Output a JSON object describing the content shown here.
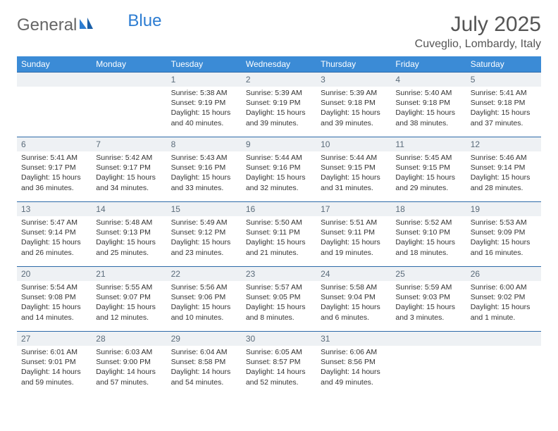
{
  "logo": {
    "text1": "General",
    "text2": "Blue"
  },
  "title": "July 2025",
  "location": "Cuveglio, Lombardy, Italy",
  "colors": {
    "header_bg": "#3b8bd6",
    "row_divider": "#2d6aa8",
    "daynum_bg": "#eef1f4",
    "text": "#333333",
    "logo_grey": "#666666",
    "logo_blue": "#2d7dd2"
  },
  "dow": [
    "Sunday",
    "Monday",
    "Tuesday",
    "Wednesday",
    "Thursday",
    "Friday",
    "Saturday"
  ],
  "weeks": [
    [
      null,
      null,
      {
        "n": "1",
        "sr": "Sunrise: 5:38 AM",
        "ss": "Sunset: 9:19 PM",
        "dl": "Daylight: 15 hours and 40 minutes."
      },
      {
        "n": "2",
        "sr": "Sunrise: 5:39 AM",
        "ss": "Sunset: 9:19 PM",
        "dl": "Daylight: 15 hours and 39 minutes."
      },
      {
        "n": "3",
        "sr": "Sunrise: 5:39 AM",
        "ss": "Sunset: 9:18 PM",
        "dl": "Daylight: 15 hours and 39 minutes."
      },
      {
        "n": "4",
        "sr": "Sunrise: 5:40 AM",
        "ss": "Sunset: 9:18 PM",
        "dl": "Daylight: 15 hours and 38 minutes."
      },
      {
        "n": "5",
        "sr": "Sunrise: 5:41 AM",
        "ss": "Sunset: 9:18 PM",
        "dl": "Daylight: 15 hours and 37 minutes."
      }
    ],
    [
      {
        "n": "6",
        "sr": "Sunrise: 5:41 AM",
        "ss": "Sunset: 9:17 PM",
        "dl": "Daylight: 15 hours and 36 minutes."
      },
      {
        "n": "7",
        "sr": "Sunrise: 5:42 AM",
        "ss": "Sunset: 9:17 PM",
        "dl": "Daylight: 15 hours and 34 minutes."
      },
      {
        "n": "8",
        "sr": "Sunrise: 5:43 AM",
        "ss": "Sunset: 9:16 PM",
        "dl": "Daylight: 15 hours and 33 minutes."
      },
      {
        "n": "9",
        "sr": "Sunrise: 5:44 AM",
        "ss": "Sunset: 9:16 PM",
        "dl": "Daylight: 15 hours and 32 minutes."
      },
      {
        "n": "10",
        "sr": "Sunrise: 5:44 AM",
        "ss": "Sunset: 9:15 PM",
        "dl": "Daylight: 15 hours and 31 minutes."
      },
      {
        "n": "11",
        "sr": "Sunrise: 5:45 AM",
        "ss": "Sunset: 9:15 PM",
        "dl": "Daylight: 15 hours and 29 minutes."
      },
      {
        "n": "12",
        "sr": "Sunrise: 5:46 AM",
        "ss": "Sunset: 9:14 PM",
        "dl": "Daylight: 15 hours and 28 minutes."
      }
    ],
    [
      {
        "n": "13",
        "sr": "Sunrise: 5:47 AM",
        "ss": "Sunset: 9:14 PM",
        "dl": "Daylight: 15 hours and 26 minutes."
      },
      {
        "n": "14",
        "sr": "Sunrise: 5:48 AM",
        "ss": "Sunset: 9:13 PM",
        "dl": "Daylight: 15 hours and 25 minutes."
      },
      {
        "n": "15",
        "sr": "Sunrise: 5:49 AM",
        "ss": "Sunset: 9:12 PM",
        "dl": "Daylight: 15 hours and 23 minutes."
      },
      {
        "n": "16",
        "sr": "Sunrise: 5:50 AM",
        "ss": "Sunset: 9:11 PM",
        "dl": "Daylight: 15 hours and 21 minutes."
      },
      {
        "n": "17",
        "sr": "Sunrise: 5:51 AM",
        "ss": "Sunset: 9:11 PM",
        "dl": "Daylight: 15 hours and 19 minutes."
      },
      {
        "n": "18",
        "sr": "Sunrise: 5:52 AM",
        "ss": "Sunset: 9:10 PM",
        "dl": "Daylight: 15 hours and 18 minutes."
      },
      {
        "n": "19",
        "sr": "Sunrise: 5:53 AM",
        "ss": "Sunset: 9:09 PM",
        "dl": "Daylight: 15 hours and 16 minutes."
      }
    ],
    [
      {
        "n": "20",
        "sr": "Sunrise: 5:54 AM",
        "ss": "Sunset: 9:08 PM",
        "dl": "Daylight: 15 hours and 14 minutes."
      },
      {
        "n": "21",
        "sr": "Sunrise: 5:55 AM",
        "ss": "Sunset: 9:07 PM",
        "dl": "Daylight: 15 hours and 12 minutes."
      },
      {
        "n": "22",
        "sr": "Sunrise: 5:56 AM",
        "ss": "Sunset: 9:06 PM",
        "dl": "Daylight: 15 hours and 10 minutes."
      },
      {
        "n": "23",
        "sr": "Sunrise: 5:57 AM",
        "ss": "Sunset: 9:05 PM",
        "dl": "Daylight: 15 hours and 8 minutes."
      },
      {
        "n": "24",
        "sr": "Sunrise: 5:58 AM",
        "ss": "Sunset: 9:04 PM",
        "dl": "Daylight: 15 hours and 6 minutes."
      },
      {
        "n": "25",
        "sr": "Sunrise: 5:59 AM",
        "ss": "Sunset: 9:03 PM",
        "dl": "Daylight: 15 hours and 3 minutes."
      },
      {
        "n": "26",
        "sr": "Sunrise: 6:00 AM",
        "ss": "Sunset: 9:02 PM",
        "dl": "Daylight: 15 hours and 1 minute."
      }
    ],
    [
      {
        "n": "27",
        "sr": "Sunrise: 6:01 AM",
        "ss": "Sunset: 9:01 PM",
        "dl": "Daylight: 14 hours and 59 minutes."
      },
      {
        "n": "28",
        "sr": "Sunrise: 6:03 AM",
        "ss": "Sunset: 9:00 PM",
        "dl": "Daylight: 14 hours and 57 minutes."
      },
      {
        "n": "29",
        "sr": "Sunrise: 6:04 AM",
        "ss": "Sunset: 8:58 PM",
        "dl": "Daylight: 14 hours and 54 minutes."
      },
      {
        "n": "30",
        "sr": "Sunrise: 6:05 AM",
        "ss": "Sunset: 8:57 PM",
        "dl": "Daylight: 14 hours and 52 minutes."
      },
      {
        "n": "31",
        "sr": "Sunrise: 6:06 AM",
        "ss": "Sunset: 8:56 PM",
        "dl": "Daylight: 14 hours and 49 minutes."
      },
      null,
      null
    ]
  ]
}
